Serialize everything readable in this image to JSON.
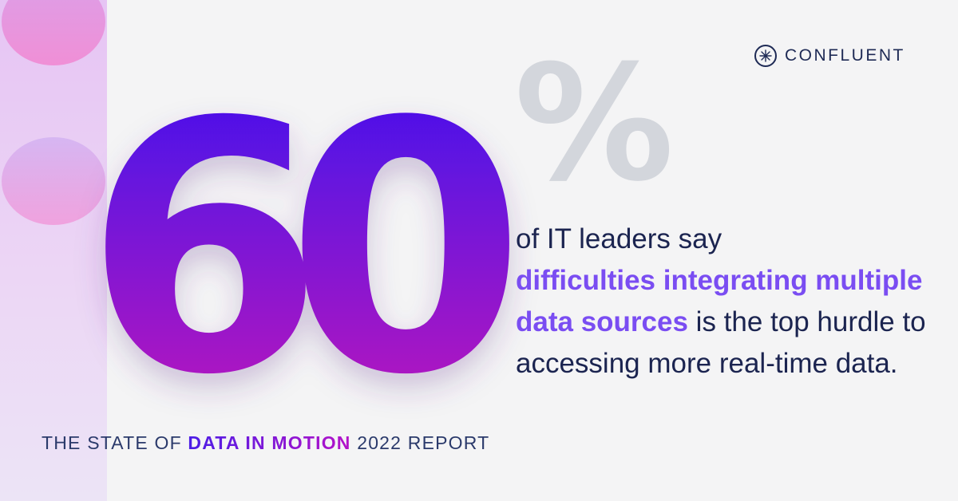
{
  "stat": {
    "number": "60",
    "percent_sign": "%"
  },
  "brand": {
    "name": "CONFLUENT",
    "icon": "confluent-logo-icon"
  },
  "statement": {
    "line1": "of IT leaders say",
    "highlight": "difficulties integrating multiple data sources",
    "rest": "is the top hurdle to accessing more real-time data."
  },
  "footer": {
    "prefix": "THE STATE OF",
    "highlight": "DATA IN MOTION",
    "suffix": "2022 REPORT"
  },
  "colors": {
    "background": "#f4f4f5",
    "number_gradient_top": "#3a10f0",
    "number_gradient_bottom": "#c417b8",
    "percent": "#d3d6dc",
    "text": "#1b2450",
    "highlight": "#7a4df2",
    "logo": "#1e2a55"
  }
}
